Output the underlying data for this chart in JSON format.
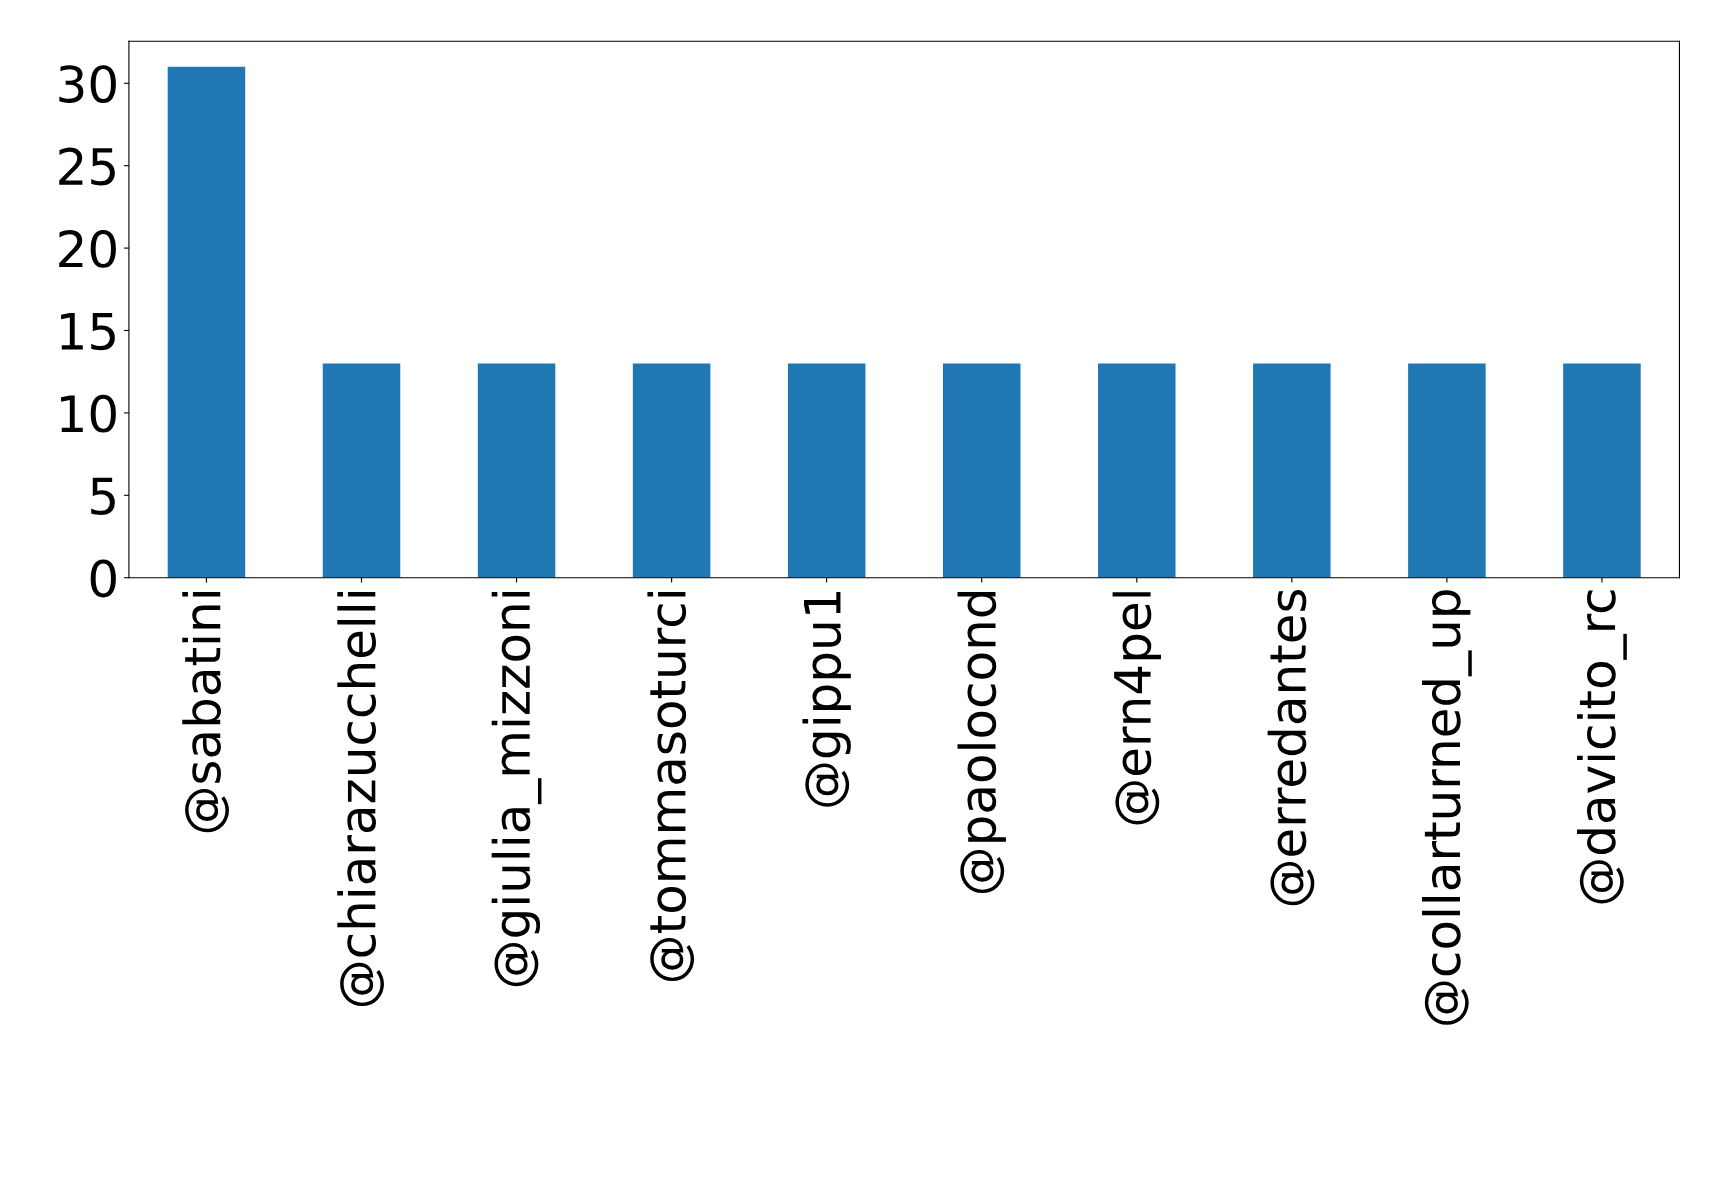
{
  "chart_data": {
    "type": "bar",
    "categories": [
      "@sabatini",
      "@chiarazucchelli",
      "@giulia_mizzoni",
      "@tommasoturci",
      "@gippu1",
      "@paolocond",
      "@ern4pel",
      "@erredantes",
      "@collarturned_up",
      "@davicito_rc"
    ],
    "values": [
      31,
      13,
      13,
      13,
      13,
      13,
      13,
      13,
      13,
      13
    ],
    "color": "#1f77b4",
    "ylim": [
      0,
      32.55
    ],
    "yticks": [
      0,
      5,
      10,
      15,
      20,
      25,
      30
    ],
    "grid": false,
    "legend": false
  }
}
